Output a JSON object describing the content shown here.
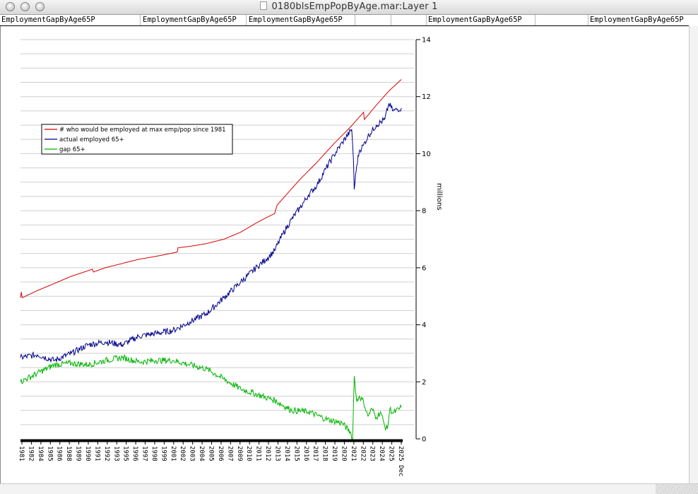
{
  "window": {
    "title": "0180blsEmpPopByAge.mar:Layer 1"
  },
  "header": {
    "cells": [
      "EmploymentGapByAge65P",
      "EmploymentGapByAge65P",
      "EmploymentGapByAge65P",
      "EmploymentGapByAge65P",
      "EmploymentGapByAge65P"
    ]
  },
  "chart_data": {
    "type": "line",
    "title": "",
    "ylabel": "millions",
    "ylim": [
      0,
      14
    ],
    "yticks": [
      0,
      2,
      4,
      6,
      8,
      10,
      12,
      14
    ],
    "grid": true,
    "legend_position": "upper-left",
    "xlim": [
      1981,
      2025.95
    ],
    "x_ticks": [
      "1981",
      "1982",
      "1984",
      "1985",
      "1986",
      "1988",
      "1989",
      "1990",
      "1991",
      "1992",
      "1993",
      "1995",
      "1996",
      "1997",
      "1998",
      "1999",
      "2001",
      "2002",
      "2003",
      "2004",
      "2005",
      "2006",
      "2007",
      "2009",
      "2010",
      "2011",
      "2012",
      "2013",
      "2014",
      "2015",
      "2016",
      "2017",
      "2018",
      "2019",
      "2020",
      "2021",
      "2022",
      "2023",
      "2024",
      "2025",
      "2025 Dec"
    ],
    "colors": {
      "max_emp": "#d40000",
      "actual": "#00008b",
      "gap": "#00b400"
    },
    "series": [
      {
        "name": "# who would be employed at max emp/pop since 1981",
        "key": "max_emp",
        "points": [
          [
            1981.0,
            4.95
          ],
          [
            1981.1,
            5.15
          ],
          [
            1981.2,
            4.95
          ],
          [
            1983.0,
            5.2
          ],
          [
            1985.0,
            5.45
          ],
          [
            1987.0,
            5.7
          ],
          [
            1989.5,
            5.95
          ],
          [
            1989.6,
            5.85
          ],
          [
            1991.0,
            6.0
          ],
          [
            1993.0,
            6.15
          ],
          [
            1995.0,
            6.3
          ],
          [
            1997.0,
            6.4
          ],
          [
            1999.5,
            6.55
          ],
          [
            1999.6,
            6.7
          ],
          [
            2001.0,
            6.75
          ],
          [
            2003.0,
            6.85
          ],
          [
            2005.0,
            7.0
          ],
          [
            2007.0,
            7.25
          ],
          [
            2009.0,
            7.6
          ],
          [
            2011.0,
            7.9
          ],
          [
            2011.3,
            8.2
          ],
          [
            2012.5,
            8.6
          ],
          [
            2014.0,
            9.1
          ],
          [
            2016.0,
            9.7
          ],
          [
            2018.0,
            10.35
          ],
          [
            2020.0,
            10.95
          ],
          [
            2021.5,
            11.45
          ],
          [
            2021.6,
            11.2
          ],
          [
            2023.0,
            11.7
          ],
          [
            2024.5,
            12.2
          ],
          [
            2025.95,
            12.6
          ]
        ]
      },
      {
        "name": "actual employed 65+",
        "key": "actual",
        "points": [
          [
            1981.0,
            2.85
          ],
          [
            1983.0,
            2.95
          ],
          [
            1985.0,
            2.75
          ],
          [
            1987.0,
            3.0
          ],
          [
            1989.0,
            3.3
          ],
          [
            1991.0,
            3.4
          ],
          [
            1993.0,
            3.3
          ],
          [
            1995.0,
            3.6
          ],
          [
            1997.0,
            3.7
          ],
          [
            1999.0,
            3.8
          ],
          [
            2001.0,
            4.1
          ],
          [
            2003.0,
            4.4
          ],
          [
            2005.0,
            4.95
          ],
          [
            2007.0,
            5.5
          ],
          [
            2009.0,
            6.05
          ],
          [
            2010.0,
            6.3
          ],
          [
            2011.0,
            6.6
          ],
          [
            2012.0,
            7.2
          ],
          [
            2013.0,
            7.7
          ],
          [
            2014.0,
            8.1
          ],
          [
            2015.0,
            8.55
          ],
          [
            2016.0,
            8.9
          ],
          [
            2017.0,
            9.45
          ],
          [
            2018.0,
            9.95
          ],
          [
            2019.0,
            10.4
          ],
          [
            2020.1,
            10.85
          ],
          [
            2020.3,
            9.8
          ],
          [
            2020.4,
            8.75
          ],
          [
            2020.7,
            9.6
          ],
          [
            2021.0,
            10.1
          ],
          [
            2021.5,
            10.3
          ],
          [
            2022.0,
            10.6
          ],
          [
            2023.0,
            11.0
          ],
          [
            2024.0,
            11.2
          ],
          [
            2024.5,
            11.75
          ],
          [
            2025.0,
            11.5
          ],
          [
            2025.95,
            11.6
          ]
        ]
      },
      {
        "name": "gap 65+",
        "key": "gap",
        "points": [
          [
            1981.0,
            2.0
          ],
          [
            1983.0,
            2.3
          ],
          [
            1985.0,
            2.6
          ],
          [
            1987.0,
            2.65
          ],
          [
            1989.0,
            2.6
          ],
          [
            1991.0,
            2.75
          ],
          [
            1993.0,
            2.85
          ],
          [
            1995.0,
            2.7
          ],
          [
            1997.0,
            2.75
          ],
          [
            1999.0,
            2.75
          ],
          [
            2001.0,
            2.6
          ],
          [
            2003.0,
            2.45
          ],
          [
            2005.0,
            2.1
          ],
          [
            2007.0,
            1.75
          ],
          [
            2009.0,
            1.55
          ],
          [
            2011.0,
            1.35
          ],
          [
            2013.0,
            1.0
          ],
          [
            2015.0,
            0.95
          ],
          [
            2017.0,
            0.7
          ],
          [
            2019.0,
            0.55
          ],
          [
            2020.0,
            0.2
          ],
          [
            2020.2,
            0.0
          ],
          [
            2020.4,
            2.2
          ],
          [
            2020.7,
            1.3
          ],
          [
            2021.0,
            1.5
          ],
          [
            2021.5,
            1.3
          ],
          [
            2022.0,
            0.8
          ],
          [
            2022.5,
            1.05
          ],
          [
            2023.0,
            0.75
          ],
          [
            2023.5,
            0.95
          ],
          [
            2024.0,
            0.45
          ],
          [
            2024.3,
            0.35
          ],
          [
            2024.6,
            1.05
          ],
          [
            2025.0,
            0.9
          ],
          [
            2025.95,
            1.1
          ]
        ]
      }
    ]
  }
}
